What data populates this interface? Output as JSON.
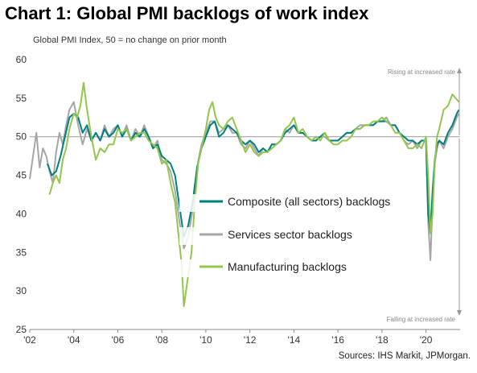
{
  "chart_data": {
    "type": "line",
    "title": "Chart 1: Global PMI backlogs of work index",
    "ylabel": "Global  PMI Index, 50 = no change on prior month",
    "source": "Sources: IHS Markit, JPMorgan.",
    "xlim": [
      2002.0,
      2021.55
    ],
    "ylim": [
      25,
      60
    ],
    "yticks": [
      25,
      30,
      35,
      40,
      45,
      50,
      55,
      60
    ],
    "xticks": [
      {
        "value": 2002,
        "label": "'02"
      },
      {
        "value": 2004,
        "label": "'04"
      },
      {
        "value": 2006,
        "label": "'06"
      },
      {
        "value": 2008,
        "label": "'08"
      },
      {
        "value": 2010,
        "label": "'10"
      },
      {
        "value": 2012,
        "label": "'12"
      },
      {
        "value": 2014,
        "label": "'14"
      },
      {
        "value": 2016,
        "label": "'16"
      },
      {
        "value": 2018,
        "label": "'18"
      },
      {
        "value": 2020,
        "label": "'20"
      }
    ],
    "reference_line": 50,
    "grid": false,
    "annotations": {
      "top": "Rising at increased rate",
      "bottom": "Falling at increased rate"
    },
    "legend_position": "center-left",
    "series": [
      {
        "name": "Composite (all sectors) backlogs",
        "color": "#007f7f",
        "x": [
          2002.8,
          2003.0,
          2003.2,
          2003.4,
          2003.6,
          2003.8,
          2004.0,
          2004.2,
          2004.4,
          2004.6,
          2004.8,
          2005.0,
          2005.2,
          2005.4,
          2005.6,
          2005.8,
          2006.0,
          2006.2,
          2006.4,
          2006.6,
          2006.8,
          2007.0,
          2007.2,
          2007.4,
          2007.6,
          2007.8,
          2008.0,
          2008.2,
          2008.4,
          2008.6,
          2008.8,
          2009.0,
          2009.2,
          2009.4,
          2009.6,
          2009.8,
          2010.0,
          2010.2,
          2010.4,
          2010.6,
          2010.8,
          2011.0,
          2011.2,
          2011.4,
          2011.6,
          2011.8,
          2012.0,
          2012.2,
          2012.4,
          2012.6,
          2012.8,
          2013.0,
          2013.2,
          2013.4,
          2013.6,
          2013.8,
          2014.0,
          2014.2,
          2014.4,
          2014.6,
          2014.8,
          2015.0,
          2015.2,
          2015.4,
          2015.6,
          2015.8,
          2016.0,
          2016.2,
          2016.4,
          2016.6,
          2016.8,
          2017.0,
          2017.2,
          2017.4,
          2017.6,
          2017.8,
          2018.0,
          2018.2,
          2018.4,
          2018.6,
          2018.8,
          2019.0,
          2019.2,
          2019.4,
          2019.6,
          2019.8,
          2020.0,
          2020.1,
          2020.2,
          2020.3,
          2020.4,
          2020.5,
          2020.6,
          2020.8,
          2021.0,
          2021.2,
          2021.4,
          2021.5
        ],
        "values": [
          46.5,
          45.0,
          45.5,
          47.5,
          50.0,
          52.5,
          53.0,
          52.5,
          50.5,
          51.5,
          49.5,
          50.5,
          49.5,
          51.0,
          50.0,
          50.5,
          51.5,
          50.0,
          51.0,
          49.5,
          50.5,
          50.0,
          51.0,
          50.0,
          48.5,
          49.0,
          47.5,
          47.0,
          46.5,
          45.0,
          41.0,
          37.0,
          38.5,
          41.5,
          46.0,
          48.5,
          50.0,
          51.5,
          52.0,
          50.0,
          50.5,
          51.5,
          51.0,
          50.5,
          49.5,
          49.0,
          49.5,
          49.0,
          48.0,
          48.5,
          48.0,
          49.0,
          49.0,
          49.5,
          50.5,
          51.0,
          51.5,
          50.5,
          50.5,
          50.0,
          49.5,
          49.5,
          50.0,
          50.5,
          49.5,
          49.5,
          49.5,
          50.0,
          50.5,
          50.5,
          51.0,
          51.0,
          51.5,
          51.5,
          51.5,
          52.0,
          52.0,
          52.0,
          51.5,
          51.5,
          50.5,
          50.0,
          49.5,
          49.5,
          49.0,
          49.5,
          49.5,
          40.0,
          37.5,
          43.0,
          47.0,
          49.0,
          49.5,
          49.0,
          50.5,
          51.5,
          53.0,
          53.5
        ]
      },
      {
        "name": "Services sector backlogs",
        "color": "#a6a6a6",
        "x": [
          2002.0,
          2002.15,
          2002.3,
          2002.45,
          2002.6,
          2002.75,
          2002.9,
          2003.05,
          2003.2,
          2003.35,
          2003.5,
          2003.65,
          2003.8,
          2004.0,
          2004.2,
          2004.4,
          2004.6,
          2004.8,
          2005.0,
          2005.2,
          2005.4,
          2005.6,
          2005.8,
          2006.0,
          2006.2,
          2006.4,
          2006.6,
          2006.8,
          2007.0,
          2007.2,
          2007.4,
          2007.6,
          2007.8,
          2008.0,
          2008.2,
          2008.4,
          2008.6,
          2008.8,
          2009.0,
          2009.2,
          2009.4,
          2009.6,
          2009.8,
          2010.0,
          2010.2,
          2010.4,
          2010.6,
          2010.8,
          2011.0,
          2011.2,
          2011.4,
          2011.6,
          2011.8,
          2012.0,
          2012.2,
          2012.4,
          2012.6,
          2012.8,
          2013.0,
          2013.2,
          2013.4,
          2013.6,
          2013.8,
          2014.0,
          2014.2,
          2014.4,
          2014.6,
          2014.8,
          2015.0,
          2015.2,
          2015.4,
          2015.6,
          2015.8,
          2016.0,
          2016.2,
          2016.4,
          2016.6,
          2016.8,
          2017.0,
          2017.2,
          2017.4,
          2017.6,
          2017.8,
          2018.0,
          2018.2,
          2018.4,
          2018.6,
          2018.8,
          2019.0,
          2019.2,
          2019.4,
          2019.6,
          2019.8,
          2020.0,
          2020.1,
          2020.2,
          2020.3,
          2020.4,
          2020.5,
          2020.6,
          2020.8,
          2021.0,
          2021.2,
          2021.4,
          2021.5
        ],
        "values": [
          44.5,
          47.5,
          50.5,
          46.0,
          48.5,
          47.5,
          45.5,
          44.0,
          48.0,
          50.5,
          49.0,
          51.5,
          53.5,
          54.5,
          51.5,
          49.0,
          51.0,
          49.5,
          50.5,
          49.5,
          51.5,
          50.0,
          51.0,
          51.5,
          50.0,
          51.5,
          49.5,
          51.0,
          50.0,
          51.5,
          50.0,
          48.5,
          49.5,
          47.0,
          46.5,
          45.5,
          43.0,
          39.0,
          35.5,
          37.0,
          40.5,
          46.0,
          49.0,
          50.5,
          52.0,
          52.0,
          50.5,
          51.0,
          51.5,
          50.5,
          50.5,
          49.0,
          48.5,
          49.5,
          48.5,
          47.5,
          48.5,
          48.0,
          49.0,
          49.0,
          49.5,
          51.0,
          50.5,
          51.5,
          50.5,
          50.5,
          50.0,
          49.5,
          49.5,
          50.0,
          50.0,
          49.5,
          49.5,
          49.5,
          50.0,
          50.5,
          50.5,
          51.0,
          51.5,
          51.5,
          51.5,
          51.5,
          52.0,
          52.0,
          52.5,
          51.5,
          51.5,
          50.5,
          49.5,
          49.0,
          49.5,
          48.5,
          49.5,
          49.5,
          39.0,
          34.0,
          41.5,
          46.5,
          48.5,
          49.5,
          48.5,
          50.0,
          51.0,
          52.5,
          53.0
        ]
      },
      {
        "name": "Manufacturing backlogs",
        "color": "#92c64e",
        "x": [
          2002.9,
          2003.05,
          2003.2,
          2003.35,
          2003.5,
          2003.65,
          2003.8,
          2004.0,
          2004.15,
          2004.3,
          2004.45,
          2004.6,
          2004.8,
          2005.0,
          2005.2,
          2005.4,
          2005.6,
          2005.8,
          2006.0,
          2006.2,
          2006.4,
          2006.6,
          2006.8,
          2007.0,
          2007.2,
          2007.4,
          2007.6,
          2007.8,
          2008.0,
          2008.2,
          2008.4,
          2008.6,
          2008.75,
          2008.9,
          2009.0,
          2009.1,
          2009.2,
          2009.35,
          2009.5,
          2009.65,
          2009.8,
          2010.0,
          2010.15,
          2010.3,
          2010.45,
          2010.6,
          2010.8,
          2011.0,
          2011.2,
          2011.4,
          2011.6,
          2011.8,
          2012.0,
          2012.2,
          2012.4,
          2012.6,
          2012.8,
          2013.0,
          2013.2,
          2013.4,
          2013.6,
          2013.8,
          2014.0,
          2014.2,
          2014.4,
          2014.6,
          2014.8,
          2015.0,
          2015.2,
          2015.4,
          2015.6,
          2015.8,
          2016.0,
          2016.2,
          2016.4,
          2016.6,
          2016.8,
          2017.0,
          2017.2,
          2017.4,
          2017.6,
          2017.8,
          2018.0,
          2018.2,
          2018.4,
          2018.6,
          2018.8,
          2019.0,
          2019.2,
          2019.4,
          2019.6,
          2019.8,
          2020.0,
          2020.1,
          2020.2,
          2020.3,
          2020.4,
          2020.5,
          2020.6,
          2020.8,
          2021.0,
          2021.2,
          2021.35,
          2021.5
        ],
        "values": [
          42.5,
          44.0,
          45.0,
          44.0,
          47.0,
          48.5,
          51.0,
          53.0,
          52.5,
          54.0,
          57.0,
          53.5,
          50.0,
          47.0,
          48.5,
          48.0,
          49.0,
          49.0,
          51.0,
          50.5,
          51.0,
          49.5,
          50.0,
          50.5,
          50.5,
          49.5,
          49.0,
          48.5,
          46.5,
          47.0,
          44.0,
          41.5,
          37.5,
          33.5,
          28.0,
          30.0,
          32.0,
          35.0,
          41.5,
          46.5,
          48.5,
          51.0,
          53.5,
          54.5,
          52.5,
          51.5,
          51.0,
          52.0,
          52.5,
          51.0,
          49.5,
          48.0,
          49.0,
          48.0,
          47.5,
          48.0,
          48.0,
          48.5,
          49.0,
          49.5,
          51.0,
          51.5,
          52.5,
          50.5,
          51.0,
          50.0,
          49.5,
          50.0,
          49.5,
          50.5,
          49.5,
          49.0,
          49.0,
          49.5,
          49.5,
          50.0,
          51.0,
          51.0,
          51.5,
          51.5,
          52.0,
          52.0,
          52.5,
          52.0,
          51.5,
          50.5,
          50.5,
          49.5,
          48.5,
          48.5,
          49.0,
          48.5,
          50.0,
          45.0,
          37.5,
          40.0,
          46.5,
          50.0,
          51.0,
          53.5,
          54.0,
          55.5,
          55.0,
          54.5
        ]
      }
    ]
  }
}
